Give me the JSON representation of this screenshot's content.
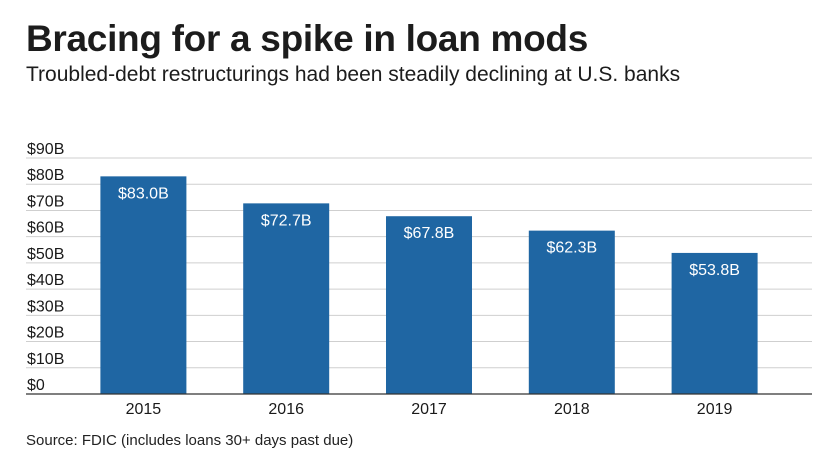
{
  "header": {
    "title": "Bracing for a spike in loan mods",
    "subtitle": "Troubled-debt restructurings had been steadily declining at U.S. banks"
  },
  "footer": {
    "source": "Source: FDIC (includes loans 30+ days past due)"
  },
  "colors": {
    "bar": "#1f66a3",
    "bar_label": "#ffffff",
    "gridline": "#cfcfcf",
    "axis": "#333333",
    "text": "#1a1a1a"
  },
  "chart_data": {
    "type": "bar",
    "categories": [
      "2015",
      "2016",
      "2017",
      "2018",
      "2019"
    ],
    "values": [
      83.0,
      72.7,
      67.8,
      62.3,
      53.8
    ],
    "value_labels": [
      "$83.0B",
      "$72.7B",
      "$67.8B",
      "$62.3B",
      "$53.8B"
    ],
    "y_ticks": [
      0,
      10,
      20,
      30,
      40,
      50,
      60,
      70,
      80,
      90
    ],
    "y_tick_labels": [
      "$0",
      "$10B",
      "$20B",
      "$30B",
      "$40B",
      "$50B",
      "$60B",
      "$70B",
      "$80B",
      "$90B"
    ],
    "ylim": [
      0,
      90
    ],
    "grid": true,
    "legend": "none"
  }
}
